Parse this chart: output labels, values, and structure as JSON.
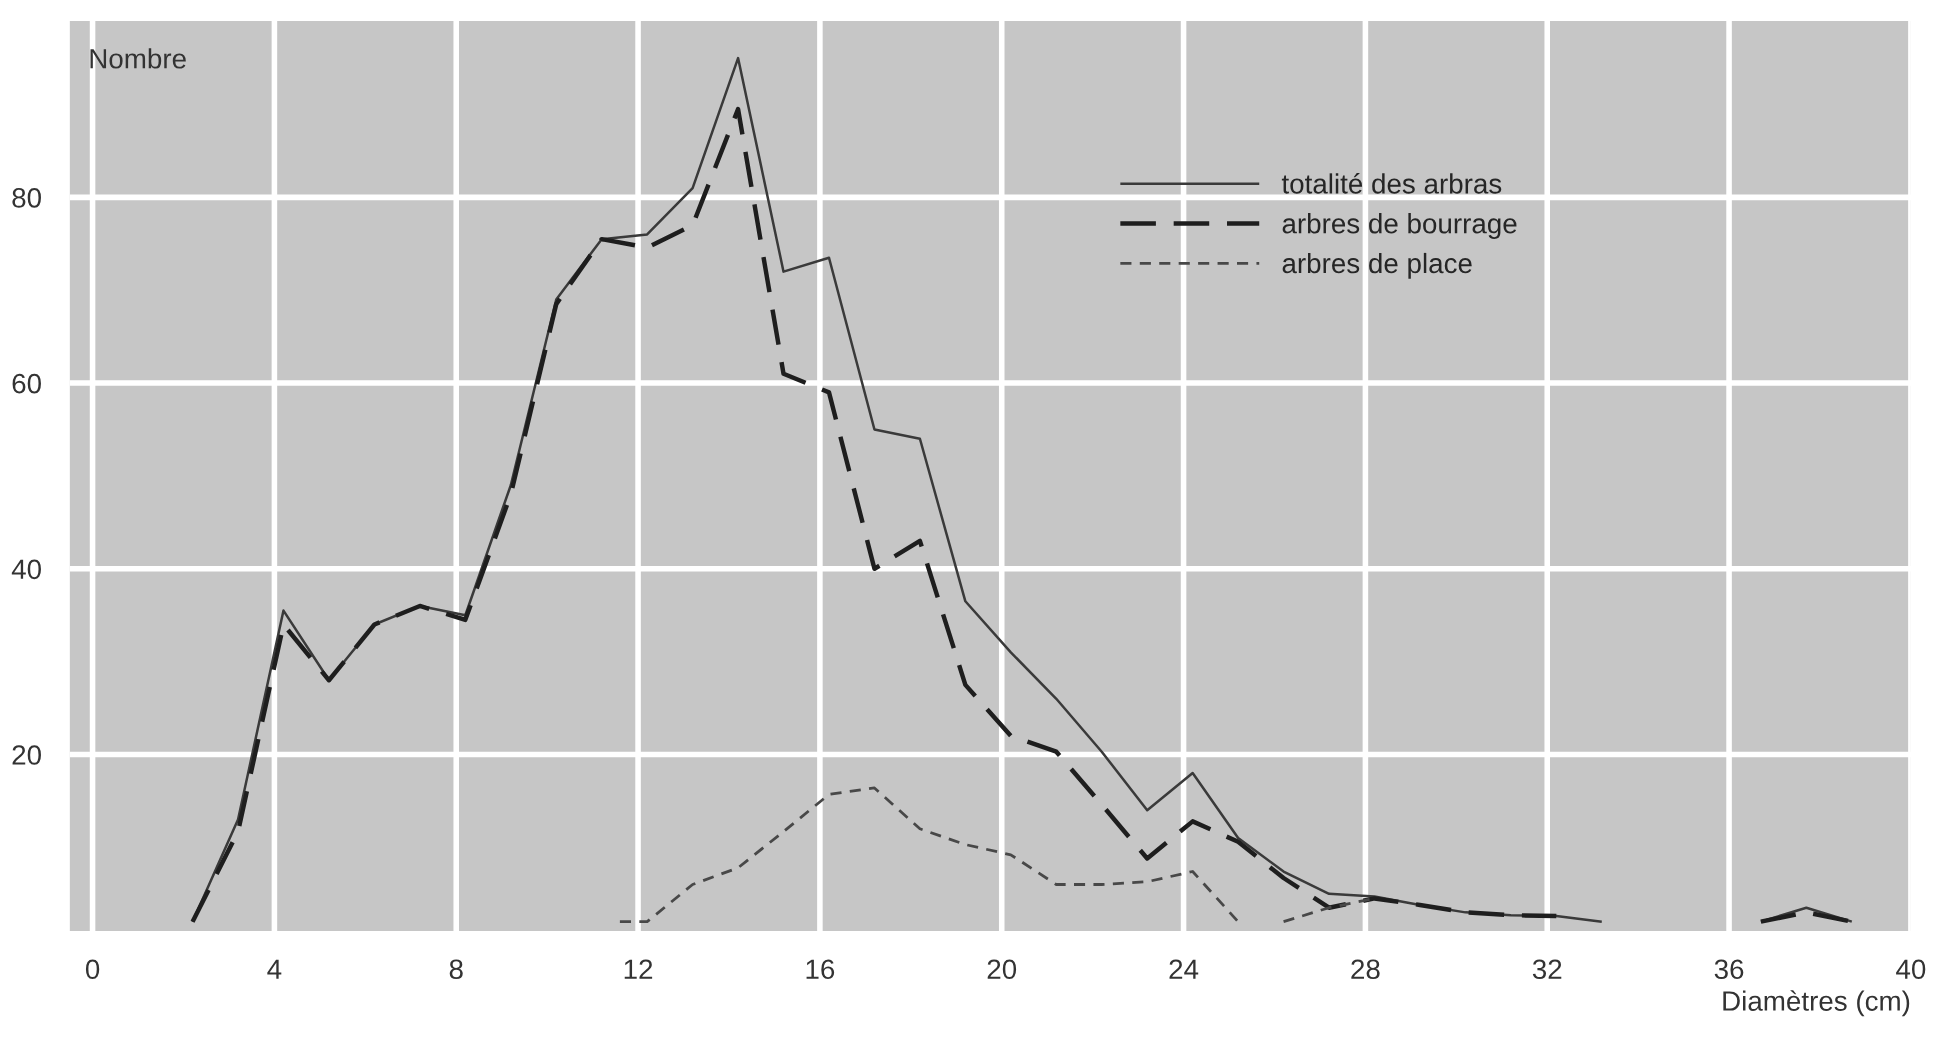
{
  "chart_data": {
    "type": "line",
    "xlabel": "Diamètres (cm)",
    "ylabel": "Nombre",
    "xlim": [
      -0.5,
      40
    ],
    "xticks": [
      0,
      4,
      8,
      12,
      16,
      20,
      24,
      28,
      32,
      36,
      40
    ],
    "ylim": [
      1,
      99
    ],
    "yticks": [
      20,
      40,
      60,
      80
    ],
    "grid": true,
    "legend": "top right",
    "marker": "none",
    "series": [
      {
        "name": "totalité des arbras",
        "color": "#3a3a3a",
        "line_style": "solid",
        "x": [
          2.2,
          3.2,
          4.2,
          5.2,
          6.2,
          7.2,
          8.2,
          9.2,
          10.2,
          11.2,
          12.2,
          13.2,
          14.2,
          15.2,
          16.2,
          17.2,
          18.2,
          19.2,
          20.2,
          21.2,
          22.2,
          23.2,
          24.2,
          25.2,
          26.2,
          27.2,
          28.2,
          29.2,
          30.2,
          31.2,
          32.2,
          33.2,
          35.5,
          36.7,
          37.7,
          38.7
        ],
        "values": [
          2,
          13,
          35.5,
          28,
          34,
          36,
          35,
          49,
          69,
          75.5,
          76,
          81,
          95,
          72,
          73.5,
          55,
          54,
          36.5,
          31,
          26,
          20.3,
          14,
          18,
          11,
          7.4,
          5,
          4.7,
          3.8,
          3,
          2.7,
          2.6,
          2,
          null,
          2,
          3.5,
          2
        ]
      },
      {
        "name": "arbres de bourrage",
        "color": "#1e1e1e",
        "line_style": "dashed",
        "x": [
          2.2,
          3.2,
          4.2,
          5.2,
          6.2,
          7.2,
          8.2,
          9.2,
          10.2,
          11.2,
          12.2,
          13.2,
          14.2,
          15.2,
          16.2,
          17.2,
          18.2,
          19.2,
          20.2,
          21.2,
          22.2,
          23.2,
          24.2,
          25.2,
          26.2,
          27.2,
          28.2,
          29.2,
          30.2,
          31.2,
          32.2,
          35.5,
          36.7,
          37.7,
          38.7
        ],
        "values": [
          2,
          11.7,
          34,
          28,
          34,
          36,
          34.5,
          48,
          68.5,
          75.5,
          74.6,
          77,
          89.5,
          61,
          59,
          40,
          43,
          27.5,
          22,
          20.3,
          14.6,
          8.8,
          12.8,
          10.6,
          6.7,
          3.5,
          4.5,
          3.8,
          3,
          2.7,
          2.6,
          null,
          2,
          3,
          2
        ]
      },
      {
        "name": "arbres de place",
        "color": "#484848",
        "line_style": "dashed",
        "x": [
          11.6,
          12.2,
          13.2,
          14.2,
          15.2,
          16.2,
          17.2,
          18.2,
          19.2,
          20.2,
          21.2,
          22.2,
          23.2,
          24.2,
          25.2,
          25.7,
          26.2,
          27.2,
          28.2
        ],
        "values": [
          2,
          2,
          6,
          7.8,
          11.7,
          15.7,
          16.4,
          12,
          10.3,
          9.2,
          6,
          6,
          6.3,
          7.4,
          2,
          null,
          2,
          3.5,
          4.5
        ]
      }
    ]
  }
}
